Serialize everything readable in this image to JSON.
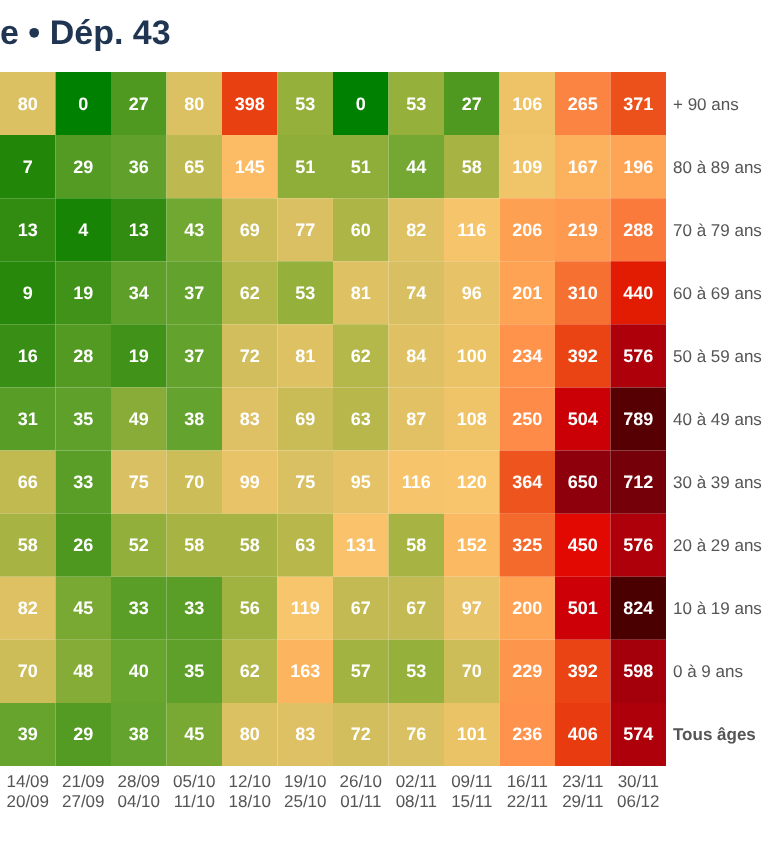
{
  "chart_data": {
    "type": "heatmap",
    "title": "e • Dép. 43",
    "categories": [
      "14/09\n20/09",
      "21/09\n27/09",
      "28/09\n04/10",
      "05/10\n11/10",
      "12/10\n18/10",
      "19/10\n25/10",
      "26/10\n01/11",
      "02/11\n08/11",
      "09/11\n15/11",
      "16/11\n22/11",
      "23/11\n29/11",
      "30/11\n06/12"
    ],
    "y_categories": [
      "+ 90 ans",
      "80 à 89 ans",
      "70 à 79 ans",
      "60 à 69 ans",
      "50 à 59 ans",
      "40 à 49 ans",
      "30 à 39 ans",
      "20 à 29 ans",
      "10 à 19 ans",
      "0 à 9 ans",
      "Tous âges"
    ],
    "cells": [
      [
        80,
        0,
        27,
        80,
        398,
        53,
        0,
        53,
        27,
        106,
        265,
        371
      ],
      [
        7,
        29,
        36,
        65,
        145,
        51,
        51,
        44,
        58,
        109,
        167,
        196
      ],
      [
        13,
        4,
        13,
        43,
        69,
        77,
        60,
        82,
        116,
        206,
        219,
        288
      ],
      [
        9,
        19,
        34,
        37,
        62,
        53,
        81,
        74,
        96,
        201,
        310,
        440
      ],
      [
        16,
        28,
        19,
        37,
        72,
        81,
        62,
        84,
        100,
        234,
        392,
        576
      ],
      [
        31,
        35,
        49,
        38,
        83,
        69,
        63,
        87,
        108,
        250,
        504,
        789
      ],
      [
        66,
        33,
        75,
        70,
        99,
        75,
        95,
        116,
        120,
        364,
        650,
        712
      ],
      [
        58,
        26,
        52,
        58,
        58,
        63,
        131,
        58,
        152,
        325,
        450,
        576
      ],
      [
        82,
        45,
        33,
        33,
        56,
        119,
        67,
        67,
        97,
        200,
        501,
        824
      ],
      [
        70,
        48,
        40,
        35,
        62,
        163,
        57,
        53,
        70,
        229,
        392,
        598
      ],
      [
        39,
        29,
        38,
        45,
        80,
        83,
        72,
        76,
        101,
        236,
        406,
        574
      ]
    ],
    "data_labels": true
  }
}
